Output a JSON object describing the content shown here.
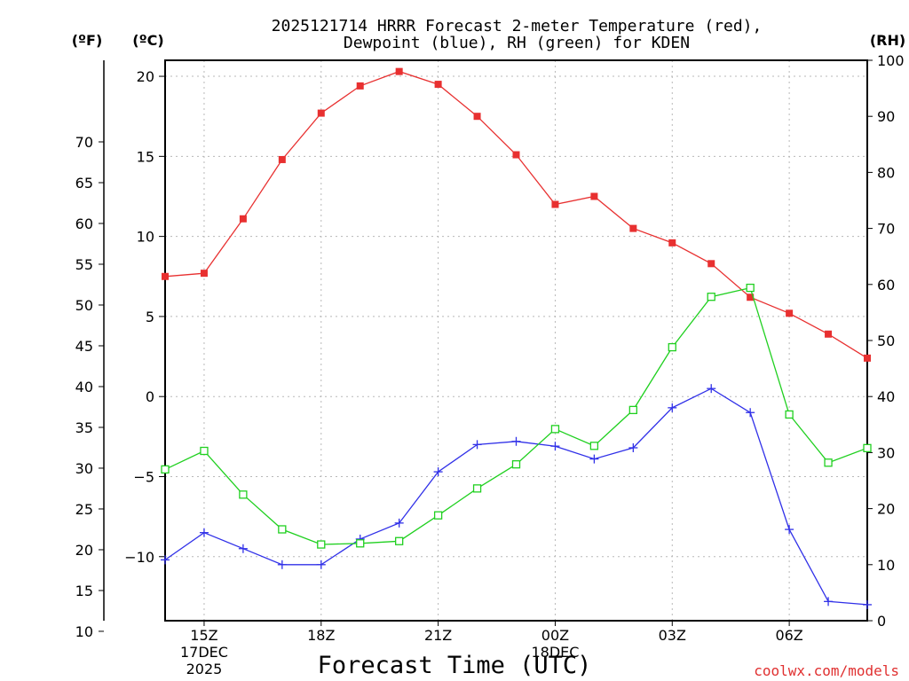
{
  "chart_data": {
    "type": "line",
    "title_lines": [
      "2025121714 HRRR Forecast 2-meter Temperature (red),",
      "Dewpoint (blue), RH (green) for KDEN"
    ],
    "xlabel": "Forecast Time (UTC)",
    "credit": "coolwx.com/models",
    "unit_labels": {
      "fahrenheit": "(ºF)",
      "celsius": "(ºC)",
      "rh": "(RH)"
    },
    "x_hours": [
      14,
      15,
      16,
      17,
      18,
      19,
      20,
      21,
      22,
      23,
      24,
      25,
      26,
      27,
      28,
      29,
      30,
      31,
      32
    ],
    "x_range": [
      14,
      32
    ],
    "x_ticks": [
      {
        "x": 15,
        "lines": [
          "15Z",
          "17DEC",
          "2025"
        ]
      },
      {
        "x": 18,
        "lines": [
          "18Z"
        ]
      },
      {
        "x": 21,
        "lines": [
          "21Z"
        ]
      },
      {
        "x": 24,
        "lines": [
          "00Z",
          "18DEC"
        ]
      },
      {
        "x": 27,
        "lines": [
          "03Z"
        ]
      },
      {
        "x": 30,
        "lines": [
          "06Z"
        ]
      }
    ],
    "celsius_range": [
      -14,
      21
    ],
    "celsius_ticks": [
      "20",
      "15",
      "10",
      "5",
      "0",
      "−5",
      "−10"
    ],
    "celsius_tick_values": [
      20,
      15,
      10,
      5,
      0,
      -5,
      -10
    ],
    "fahrenheit_ticks": [
      "70",
      "65",
      "60",
      "55",
      "50",
      "45",
      "40",
      "35",
      "30",
      "25",
      "20",
      "15",
      "10"
    ],
    "fahrenheit_tick_values": [
      70,
      65,
      60,
      55,
      50,
      45,
      40,
      35,
      30,
      25,
      20,
      15,
      10
    ],
    "rh_range": [
      0,
      100
    ],
    "rh_ticks": [
      "100",
      "90",
      "80",
      "70",
      "60",
      "50",
      "40",
      "30",
      "20",
      "10",
      "0"
    ],
    "rh_tick_values": [
      100,
      90,
      80,
      70,
      60,
      50,
      40,
      30,
      20,
      10,
      0
    ],
    "series": [
      {
        "name": "Temperature",
        "axis": "celsius",
        "color": "#e83030",
        "marker": "filled-square",
        "values": [
          7.5,
          7.7,
          11.1,
          14.8,
          17.7,
          19.4,
          20.3,
          19.5,
          17.5,
          15.1,
          12.0,
          12.5,
          10.5,
          9.6,
          8.3,
          6.2,
          5.2,
          3.9,
          2.4
        ]
      },
      {
        "name": "Dewpoint",
        "axis": "celsius",
        "color": "#3030e8",
        "marker": "plus",
        "values": [
          -10.2,
          -8.5,
          -9.5,
          -10.5,
          -10.5,
          -8.9,
          -7.9,
          -4.7,
          -3.0,
          -2.8,
          -3.1,
          -3.9,
          -3.2,
          -0.7,
          0.5,
          -1.0,
          -8.3,
          -12.8,
          -13.0
        ]
      },
      {
        "name": "Relative Humidity",
        "axis": "rh",
        "color": "#20d020",
        "marker": "open-square",
        "values": [
          27.0,
          30.3,
          22.5,
          16.3,
          13.6,
          13.8,
          14.2,
          18.8,
          23.6,
          27.9,
          34.2,
          31.2,
          37.6,
          48.8,
          57.8,
          59.4,
          36.8,
          28.2,
          30.8
        ]
      }
    ]
  }
}
